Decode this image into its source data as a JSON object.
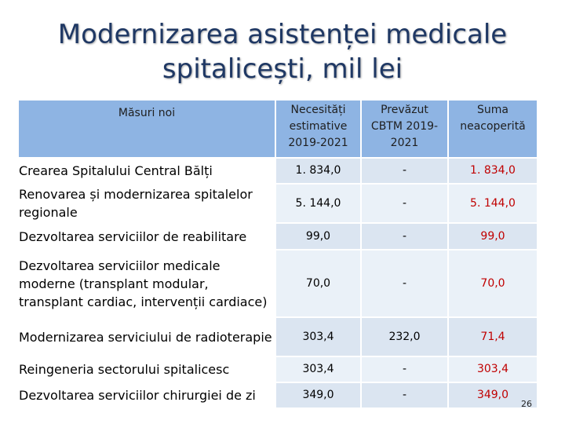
{
  "title": {
    "line1": "Modernizarea asistenței medicale",
    "line2": "spitalicești, mil lei"
  },
  "table": {
    "headers": [
      "Măsuri noi",
      "Necesități estimative 2019-2021",
      "Prevăzut CBTM 2019-2021",
      "Suma neacoperită"
    ],
    "rows": [
      {
        "measure": "Crearea Spitalului Central Bălți",
        "estimated": "1. 834,0",
        "planned": "-",
        "uncovered": "1. 834,0"
      },
      {
        "measure": "Renovarea și modernizarea spitalelor regionale",
        "estimated": "5. 144,0",
        "planned": "-",
        "uncovered": "5. 144,0"
      },
      {
        "measure": "Dezvoltarea serviciilor de reabilitare",
        "estimated": "99,0",
        "planned": "-",
        "uncovered": "99,0"
      },
      {
        "measure": "Dezvoltarea serviciilor medicale moderne (transplant modular, transplant cardiac, intervenții cardiace)",
        "estimated": "70,0",
        "planned": "-",
        "uncovered": "70,0"
      },
      {
        "measure": "Modernizarea serviciului de radioterapie",
        "estimated": "303,4",
        "planned": "232,0",
        "uncovered": "71,4"
      },
      {
        "measure": "Reingeneria sectorului spitalicesc",
        "estimated": "303,4",
        "planned": "-",
        "uncovered": "303,4"
      },
      {
        "measure": "Dezvoltarea serviciilor chirurgiei de zi",
        "estimated": "349,0",
        "planned": "-",
        "uncovered": "349,0"
      }
    ]
  },
  "page_number": "26",
  "colors": {
    "title": "#1f3864",
    "header_bg": "#8eb4e3",
    "cell_bg": "#dbe5f1",
    "uncovered_text": "#c00000"
  }
}
